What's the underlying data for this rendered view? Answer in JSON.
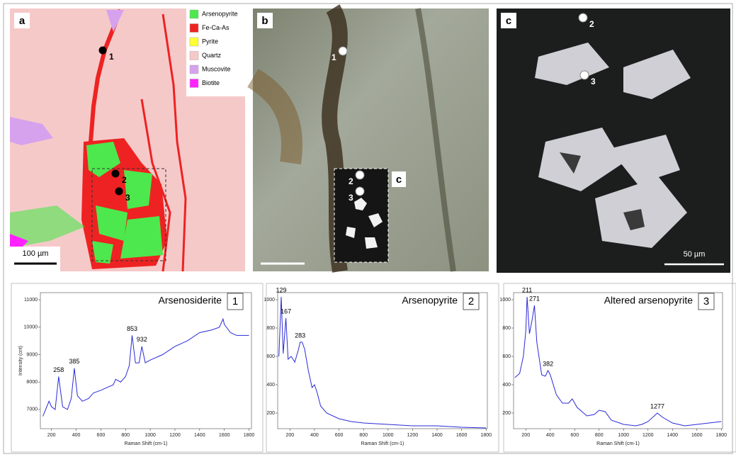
{
  "panels": [
    {
      "label": "a",
      "legend": [
        {
          "name": "Arsenopyrite",
          "color": "#4de84d"
        },
        {
          "name": "Fe-Ca-As",
          "color": "#ee2222"
        },
        {
          "name": "Pyrite",
          "color": "#ffff33"
        },
        {
          "name": "Quartz",
          "color": "#f6c9c9"
        },
        {
          "name": "Muscovite",
          "color": "#d6a2ee"
        },
        {
          "name": "Biotite",
          "color": "#ff22ff"
        }
      ],
      "points": [
        "1",
        "2",
        "3"
      ],
      "scale_bar": "100 µm"
    },
    {
      "label": "b",
      "points": [
        "1",
        "2",
        "3"
      ],
      "inset_label": "c"
    },
    {
      "label": "c",
      "points": [
        "2",
        "3"
      ],
      "scale_bar": "50 µm"
    }
  ],
  "spectra": [
    {
      "type": "line",
      "title": "Arsenosiderite",
      "point": "1",
      "color": "#2a2ad8",
      "y_label": "Intensity (cnt)",
      "x_label": "Raman Shift (cm-1)",
      "x": [
        130,
        180,
        200,
        230,
        258,
        290,
        330,
        360,
        385,
        410,
        450,
        500,
        540,
        600,
        650,
        700,
        720,
        760,
        800,
        830,
        853,
        880,
        910,
        932,
        960,
        1000,
        1100,
        1200,
        1300,
        1400,
        1500,
        1560,
        1590,
        1600,
        1650,
        1700,
        1800
      ],
      "values": [
        6750,
        7300,
        7100,
        7000,
        8200,
        7100,
        7000,
        7400,
        8500,
        7500,
        7300,
        7400,
        7600,
        7700,
        7800,
        7900,
        8100,
        8000,
        8200,
        8600,
        9700,
        8700,
        8700,
        9300,
        8700,
        8800,
        9000,
        9300,
        9500,
        9800,
        9900,
        10000,
        10300,
        10100,
        9800,
        9700,
        9700
      ],
      "xlim": [
        110,
        1820
      ],
      "ylim": [
        6300,
        11260
      ],
      "xticks": [
        200,
        400,
        600,
        800,
        1000,
        1200,
        1400,
        1600,
        1800
      ],
      "yticks": [
        7000,
        8000,
        9000,
        10000,
        11000
      ],
      "peaks": [
        258,
        385,
        853,
        932
      ]
    },
    {
      "type": "line",
      "title": "Arsenopyrite",
      "point": "2",
      "color": "#2a2ad8",
      "x_label": "Raman Shift (cm-1)",
      "x": [
        110,
        129,
        145,
        167,
        185,
        210,
        240,
        270,
        283,
        300,
        320,
        350,
        380,
        400,
        420,
        450,
        500,
        600,
        700,
        800,
        1000,
        1200,
        1400,
        1600,
        1800
      ],
      "values": [
        600,
        1020,
        620,
        870,
        580,
        600,
        560,
        650,
        700,
        700,
        650,
        500,
        380,
        400,
        350,
        250,
        200,
        160,
        140,
        130,
        120,
        110,
        110,
        100,
        95
      ],
      "xlim": [
        100,
        1810
      ],
      "ylim": [
        90,
        1050
      ],
      "xticks": [
        200,
        400,
        600,
        800,
        1000,
        1200,
        1400,
        1600,
        1800
      ],
      "yticks": [
        200,
        400,
        600,
        800,
        1000
      ],
      "peaks": [
        129,
        167,
        283
      ]
    },
    {
      "type": "line",
      "title": "Altered arsenopyrite",
      "point": "3",
      "color": "#2a2ad8",
      "x_label": "Raman Shift (cm-1)",
      "x": [
        110,
        150,
        180,
        200,
        211,
        230,
        250,
        271,
        290,
        330,
        360,
        382,
        400,
        450,
        500,
        550,
        580,
        620,
        700,
        760,
        800,
        850,
        900,
        1000,
        1100,
        1150,
        1200,
        1277,
        1320,
        1400,
        1500,
        1600,
        1700,
        1800
      ],
      "values": [
        450,
        480,
        600,
        780,
        1020,
        760,
        850,
        960,
        700,
        470,
        460,
        500,
        470,
        330,
        270,
        270,
        300,
        240,
        180,
        190,
        220,
        210,
        150,
        120,
        110,
        120,
        140,
        200,
        170,
        130,
        110,
        120,
        130,
        140
      ],
      "xlim": [
        100,
        1810
      ],
      "ylim": [
        90,
        1050
      ],
      "xticks": [
        200,
        400,
        600,
        800,
        1000,
        1200,
        1400,
        1600,
        1800
      ],
      "yticks": [
        200,
        400,
        600,
        800,
        1000
      ],
      "peaks": [
        211,
        271,
        382,
        1277
      ]
    }
  ]
}
